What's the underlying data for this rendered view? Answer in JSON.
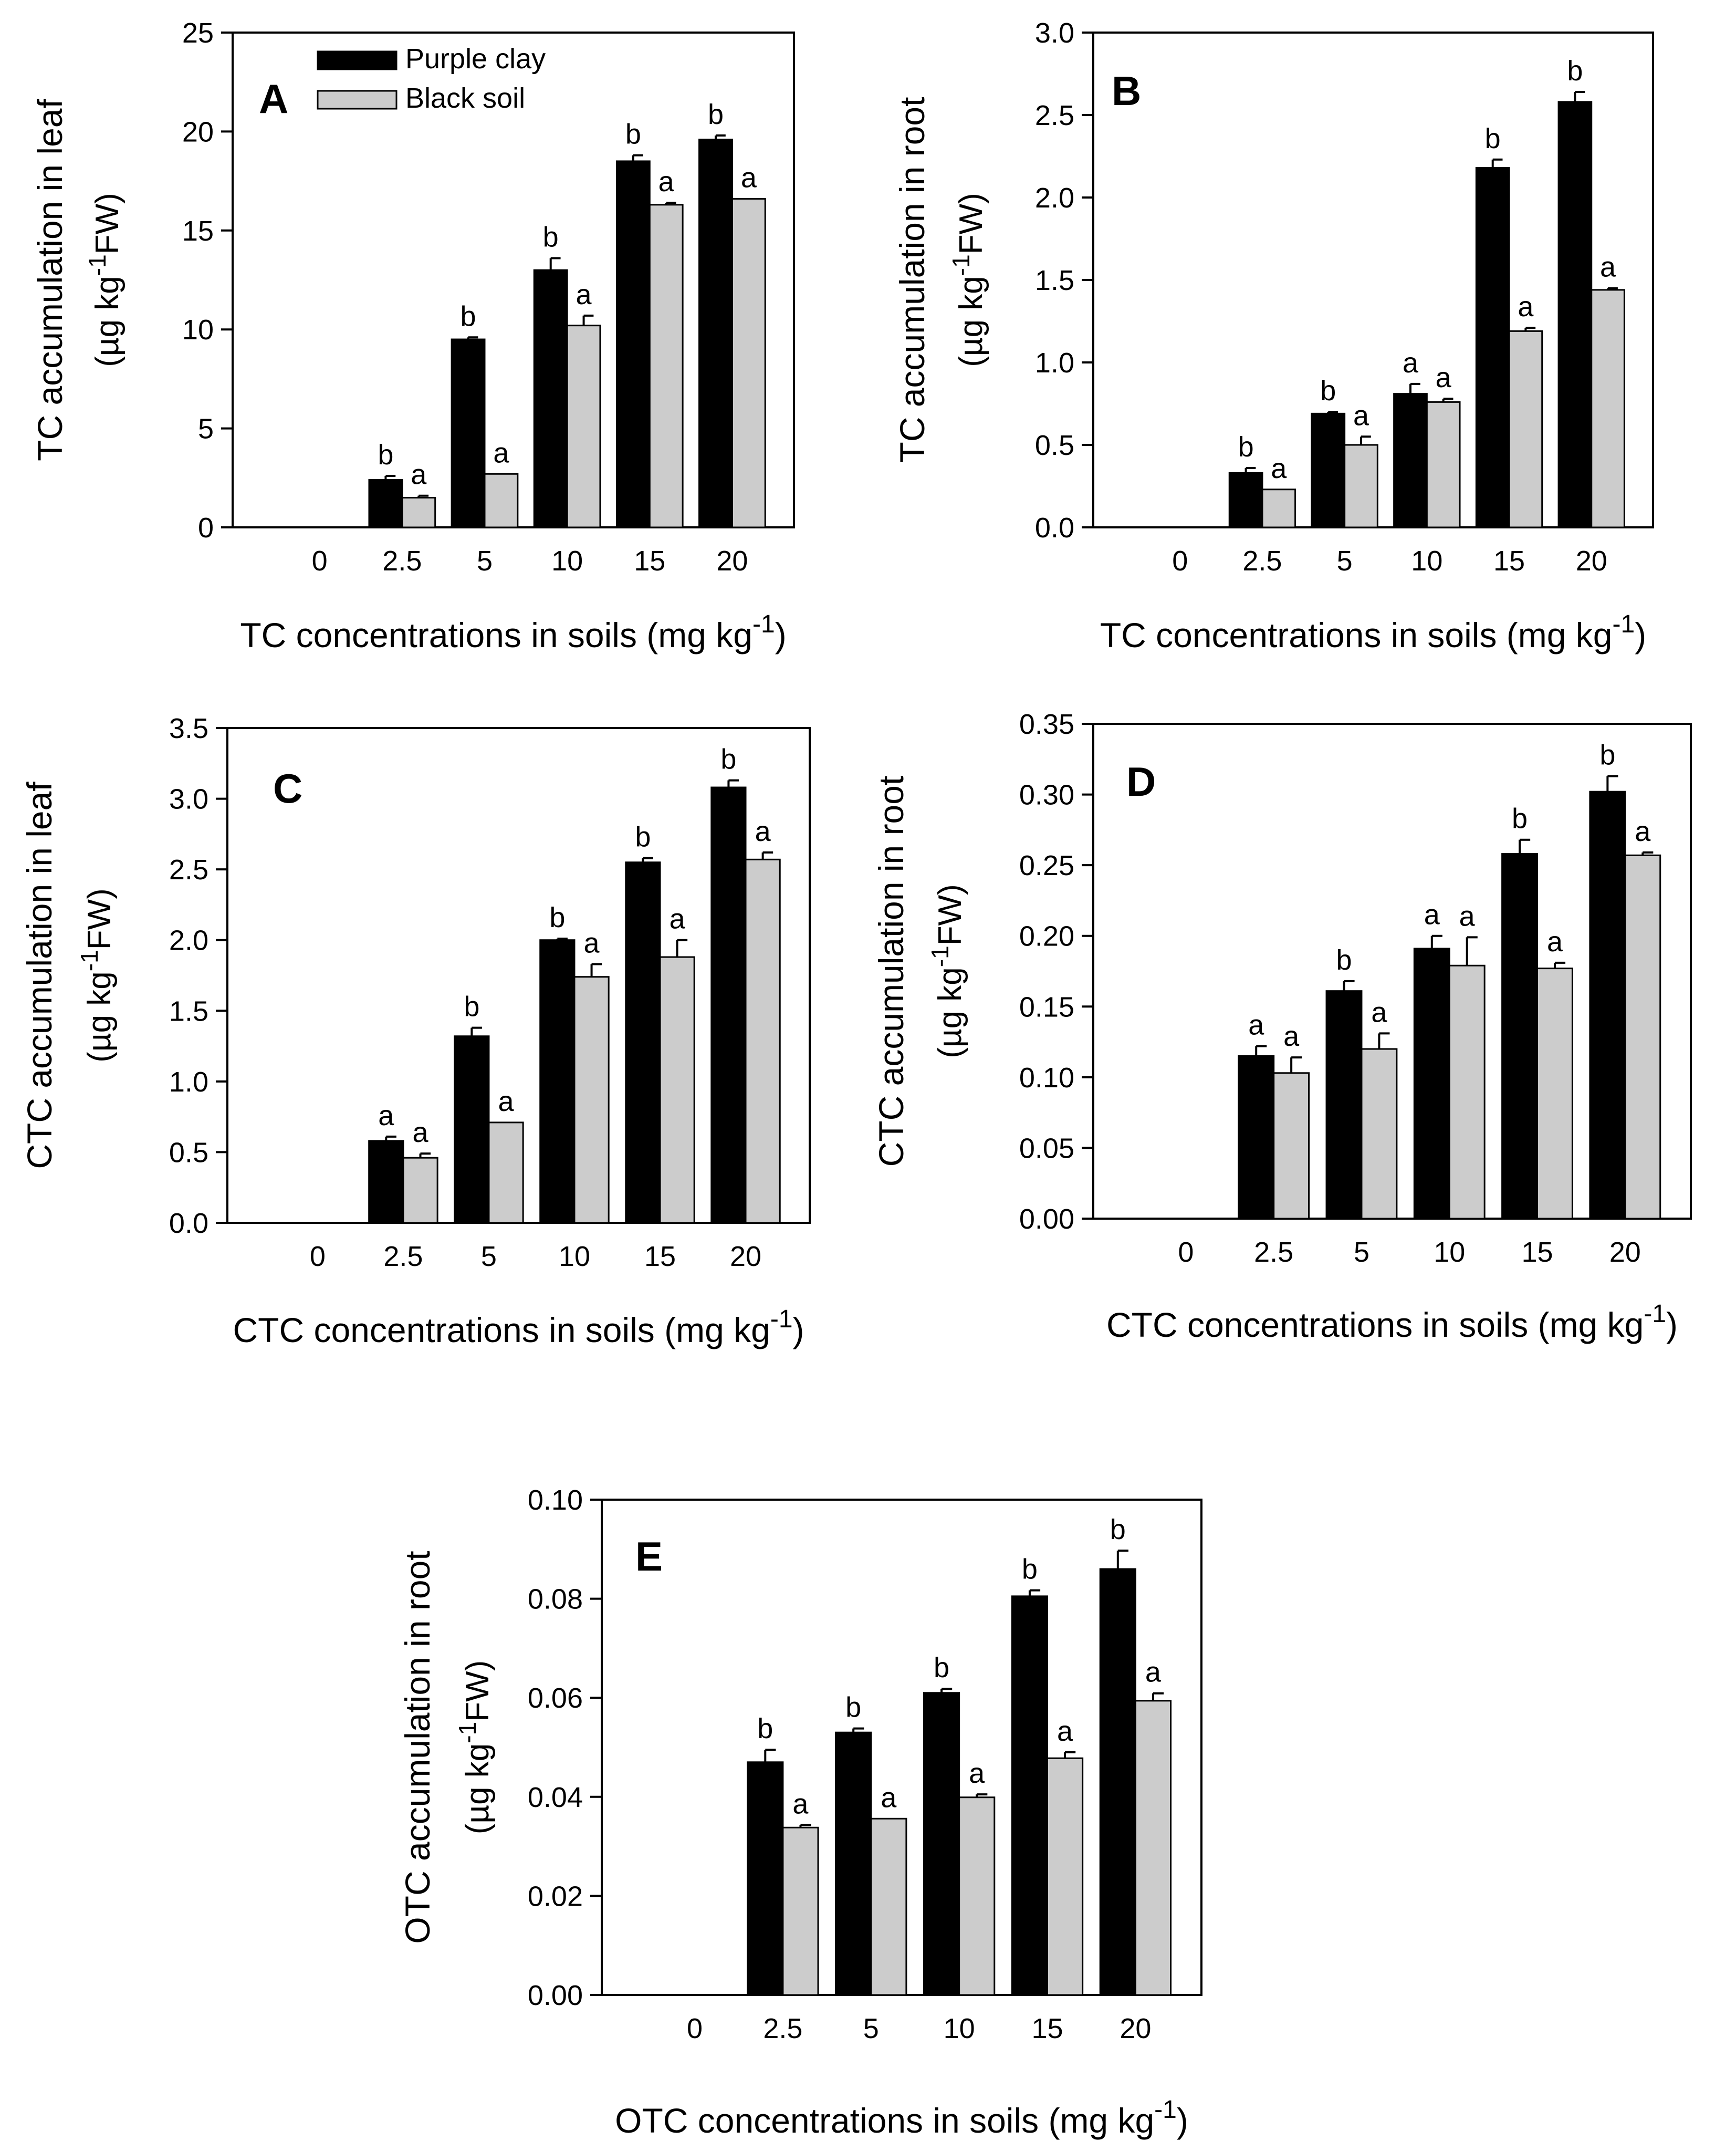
{
  "legend": {
    "series": [
      {
        "name": "Purple clay",
        "color": "#000000"
      },
      {
        "name": "Black soil",
        "color": "#cccccc"
      }
    ]
  },
  "chart_data": [
    {
      "type": "bar",
      "panel": "A",
      "ylabel_line1": "TC accumulation in leaf",
      "ylabel_unit": "(µg kg",
      "ylabel_sup": "-1",
      "ylabel_unit_tail": "FW)",
      "xlabel": "TC concentrations in soils (mg kg",
      "xlabel_sup": "-1",
      "xlabel_tail": ")",
      "categories": [
        "0",
        "2.5",
        "5",
        "10",
        "15",
        "20"
      ],
      "ylim": [
        0,
        25
      ],
      "yticks": [
        "0",
        "5",
        "10",
        "15",
        "20",
        "25"
      ],
      "legend": true,
      "series": [
        {
          "name": "Purple clay",
          "values": [
            0,
            2.4,
            9.5,
            13.0,
            18.5,
            19.6
          ],
          "errors": [
            0,
            0.2,
            0.1,
            0.6,
            0.3,
            0.2
          ],
          "labels": [
            "",
            "b",
            "b",
            "b",
            "b",
            "b"
          ]
        },
        {
          "name": "Black soil",
          "values": [
            0,
            1.5,
            2.7,
            10.2,
            16.3,
            16.6
          ],
          "errors": [
            0,
            0.1,
            0,
            0.5,
            0.1,
            0
          ],
          "labels": [
            "",
            "a",
            "a",
            "a",
            "a",
            "a"
          ]
        }
      ]
    },
    {
      "type": "bar",
      "panel": "B",
      "ylabel_line1": "TC accumulation in root",
      "ylabel_unit": "(µg kg",
      "ylabel_sup": "-1",
      "ylabel_unit_tail": "FW)",
      "xlabel": "TC concentrations in soils (mg kg",
      "xlabel_sup": "-1",
      "xlabel_tail": ")",
      "categories": [
        "0",
        "2.5",
        "5",
        "10",
        "15",
        "20"
      ],
      "ylim": [
        0,
        3.0
      ],
      "yticks": [
        "0.0",
        "0.5",
        "1.0",
        "1.5",
        "2.0",
        "2.5",
        "3.0"
      ],
      "legend": false,
      "series": [
        {
          "name": "Purple clay",
          "values": [
            0,
            0.33,
            0.69,
            0.81,
            2.18,
            2.58
          ],
          "errors": [
            0,
            0.03,
            0.01,
            0.06,
            0.05,
            0.06
          ],
          "labels": [
            "",
            "b",
            "b",
            "a",
            "b",
            "b"
          ]
        },
        {
          "name": "Black soil",
          "values": [
            0,
            0.23,
            0.5,
            0.76,
            1.19,
            1.44
          ],
          "errors": [
            0,
            0,
            0.05,
            0.02,
            0.02,
            0.01
          ],
          "labels": [
            "",
            "a",
            "a",
            "a",
            "a",
            "a"
          ]
        }
      ]
    },
    {
      "type": "bar",
      "panel": "C",
      "ylabel_line1": "CTC accumulation in leaf",
      "ylabel_unit": "(µg kg",
      "ylabel_sup": "-1",
      "ylabel_unit_tail": "FW)",
      "xlabel": "CTC concentrations in soils (mg kg",
      "xlabel_sup": "-1",
      "xlabel_tail": ")",
      "categories": [
        "0",
        "2.5",
        "5",
        "10",
        "15",
        "20"
      ],
      "ylim": [
        0,
        3.5
      ],
      "yticks": [
        "0.0",
        "0.5",
        "1.0",
        "1.5",
        "2.0",
        "2.5",
        "3.0",
        "3.5"
      ],
      "legend": false,
      "series": [
        {
          "name": "Purple clay",
          "values": [
            0,
            0.58,
            1.32,
            2.0,
            2.55,
            3.08
          ],
          "errors": [
            0,
            0.03,
            0.06,
            0.01,
            0.03,
            0.05
          ],
          "labels": [
            "",
            "a",
            "b",
            "b",
            "b",
            "b"
          ]
        },
        {
          "name": "Black soil",
          "values": [
            0,
            0.46,
            0.71,
            1.74,
            1.88,
            2.57
          ],
          "errors": [
            0,
            0.03,
            0,
            0.09,
            0.12,
            0.05
          ],
          "labels": [
            "",
            "a",
            "a",
            "a",
            "a",
            "a"
          ]
        }
      ]
    },
    {
      "type": "bar",
      "panel": "D",
      "ylabel_line1": "CTC accumulation in root",
      "ylabel_unit": "(µg kg",
      "ylabel_sup": "-1",
      "ylabel_unit_tail": "FW)",
      "xlabel": "CTC concentrations in soils (mg kg",
      "xlabel_sup": "-1",
      "xlabel_tail": ")",
      "categories": [
        "0",
        "2.5",
        "5",
        "10",
        "15",
        "20"
      ],
      "ylim": [
        0,
        0.35
      ],
      "yticks": [
        "0.00",
        "0.05",
        "0.10",
        "0.15",
        "0.20",
        "0.25",
        "0.30",
        "0.35"
      ],
      "legend": false,
      "series": [
        {
          "name": "Purple clay",
          "values": [
            0,
            0.115,
            0.161,
            0.191,
            0.258,
            0.302
          ],
          "errors": [
            0,
            0.007,
            0.007,
            0.009,
            0.01,
            0.011
          ],
          "labels": [
            "",
            "a",
            "b",
            "a",
            "b",
            "b"
          ]
        },
        {
          "name": "Black soil",
          "values": [
            0,
            0.103,
            0.12,
            0.179,
            0.177,
            0.257
          ],
          "errors": [
            0,
            0.011,
            0.011,
            0.02,
            0.004,
            0.002
          ],
          "labels": [
            "",
            "a",
            "a",
            "a",
            "a",
            "a"
          ]
        }
      ]
    },
    {
      "type": "bar",
      "panel": "E",
      "ylabel_line1": "OTC accumulation in root",
      "ylabel_unit": "(µg kg",
      "ylabel_sup": "-1",
      "ylabel_unit_tail": "FW)",
      "xlabel": "OTC concentrations in soils (mg kg",
      "xlabel_sup": "-1",
      "xlabel_tail": ")",
      "categories": [
        "0",
        "2.5",
        "5",
        "10",
        "15",
        "20"
      ],
      "ylim": [
        0,
        0.1
      ],
      "yticks": [
        "0.00",
        "0.02",
        "0.04",
        "0.06",
        "0.08",
        "0.10"
      ],
      "legend": false,
      "series": [
        {
          "name": "Purple clay",
          "values": [
            0,
            0.047,
            0.053,
            0.061,
            0.0805,
            0.086
          ],
          "errors": [
            0,
            0.0025,
            0.0008,
            0.0008,
            0.0012,
            0.0037
          ],
          "labels": [
            "",
            "b",
            "b",
            "b",
            "b",
            "b"
          ]
        },
        {
          "name": "Black soil",
          "values": [
            0,
            0.0338,
            0.0356,
            0.0399,
            0.0478,
            0.0594
          ],
          "errors": [
            0,
            0.0005,
            0,
            0.0006,
            0.0012,
            0.0015
          ],
          "labels": [
            "",
            "a",
            "a",
            "a",
            "a",
            "a"
          ]
        }
      ]
    }
  ]
}
